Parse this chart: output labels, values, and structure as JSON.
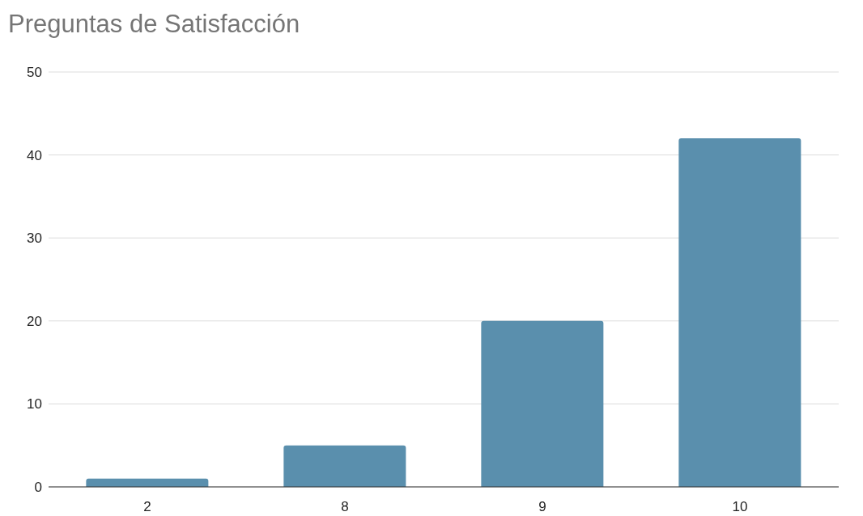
{
  "chart_data": {
    "type": "bar",
    "title": "Preguntas de Satisfacción",
    "categories": [
      "2",
      "8",
      "9",
      "10"
    ],
    "values": [
      1,
      5,
      20,
      42
    ],
    "color": "#5a8fad",
    "ylim": [
      0,
      50
    ],
    "yticks": [
      0,
      10,
      20,
      30,
      40,
      50
    ],
    "grid": "y"
  }
}
